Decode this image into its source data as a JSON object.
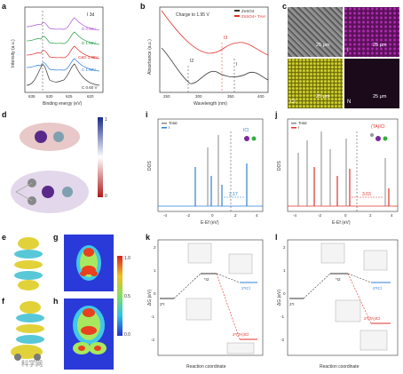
{
  "panels": {
    "a": {
      "letter": "a",
      "title": "I 3d",
      "xlabel": "Binding energy (eV)",
      "ylabel": "Intensity (a.u.)",
      "xticks": [
        "635",
        "630",
        "625",
        "620"
      ],
      "traces": [
        {
          "label": "D 0.65V",
          "color": "#b05cd6"
        },
        {
          "label": "D 1.65V",
          "color": "#2aa04a"
        },
        {
          "label": "C&D 1.65V",
          "color": "#e0302a"
        },
        {
          "label": "C 1.60V",
          "color": "#2f7fd6"
        },
        {
          "label": "C 0.60 V",
          "color": "#333333"
        }
      ]
    },
    "b": {
      "letter": "b",
      "annotation": "Charge to 1.95 V",
      "xlabel": "Wavelength (nm)",
      "ylabel": "Absorbance (a.u.)",
      "xticks": [
        "250",
        "300",
        "350",
        "400"
      ],
      "legend": [
        {
          "label": "ZnSO4",
          "color": "#333333"
        },
        {
          "label": "ZnSO4+ TAH",
          "color": "#e0302a"
        }
      ],
      "peaks": [
        "I2",
        "I3",
        "I"
      ]
    },
    "c": {
      "letter": "c",
      "scalebar": "25 μm",
      "maps": [
        {
          "label": "",
          "color": "#777"
        },
        {
          "label": "I",
          "color": "#8a1c8a"
        },
        {
          "label": "Cl",
          "color": "#9a9a14"
        },
        {
          "label": "N",
          "color": "#1a0a1a"
        }
      ]
    },
    "d": {
      "letter": "d",
      "colorbar_max": "1",
      "colorbar_min": "0"
    },
    "e": {
      "letter": "e"
    },
    "f": {
      "letter": "f"
    },
    "g": {
      "letter": "g",
      "colorbar_max": "1.0",
      "colorbar_mid": "0.5",
      "colorbar_min": "0.0"
    },
    "h": {
      "letter": "h"
    },
    "i": {
      "letter": "i",
      "legend_total": "Total",
      "legend_species": "I",
      "molecule": "ICl",
      "gap": "2.17",
      "xlabel": "E-Ef (eV)",
      "ylabel": "DOS",
      "xticks": [
        "-4",
        "-2",
        "0",
        "2",
        "4"
      ]
    },
    "j": {
      "letter": "j",
      "legend_total": "Total",
      "legend_species": "I",
      "molecule": "(TA)ICl",
      "gap": "3.03",
      "xlabel": "E-Ef (eV)",
      "ylabel": "DOS",
      "xticks": [
        "-4",
        "-2",
        "0",
        "2",
        "4"
      ]
    },
    "k": {
      "letter": "k",
      "xlabel": "Reaction coordinate",
      "ylabel": "ΔG (eV)",
      "yticks": [
        "2",
        "1",
        "0",
        "-1",
        "-2"
      ],
      "levels": [
        "2*I",
        "*I2",
        "2*ICl",
        "2*(TA)ICl"
      ]
    },
    "l": {
      "letter": "l",
      "xlabel": "Reaction coordinate",
      "ylabel": "ΔG (eV)",
      "yticks": [
        "2",
        "1",
        "0",
        "-1",
        "-2"
      ],
      "levels": [
        "2*I",
        "*I2",
        "2*ICl",
        "2*(TA)ICl"
      ]
    }
  },
  "watermark": "科学网"
}
